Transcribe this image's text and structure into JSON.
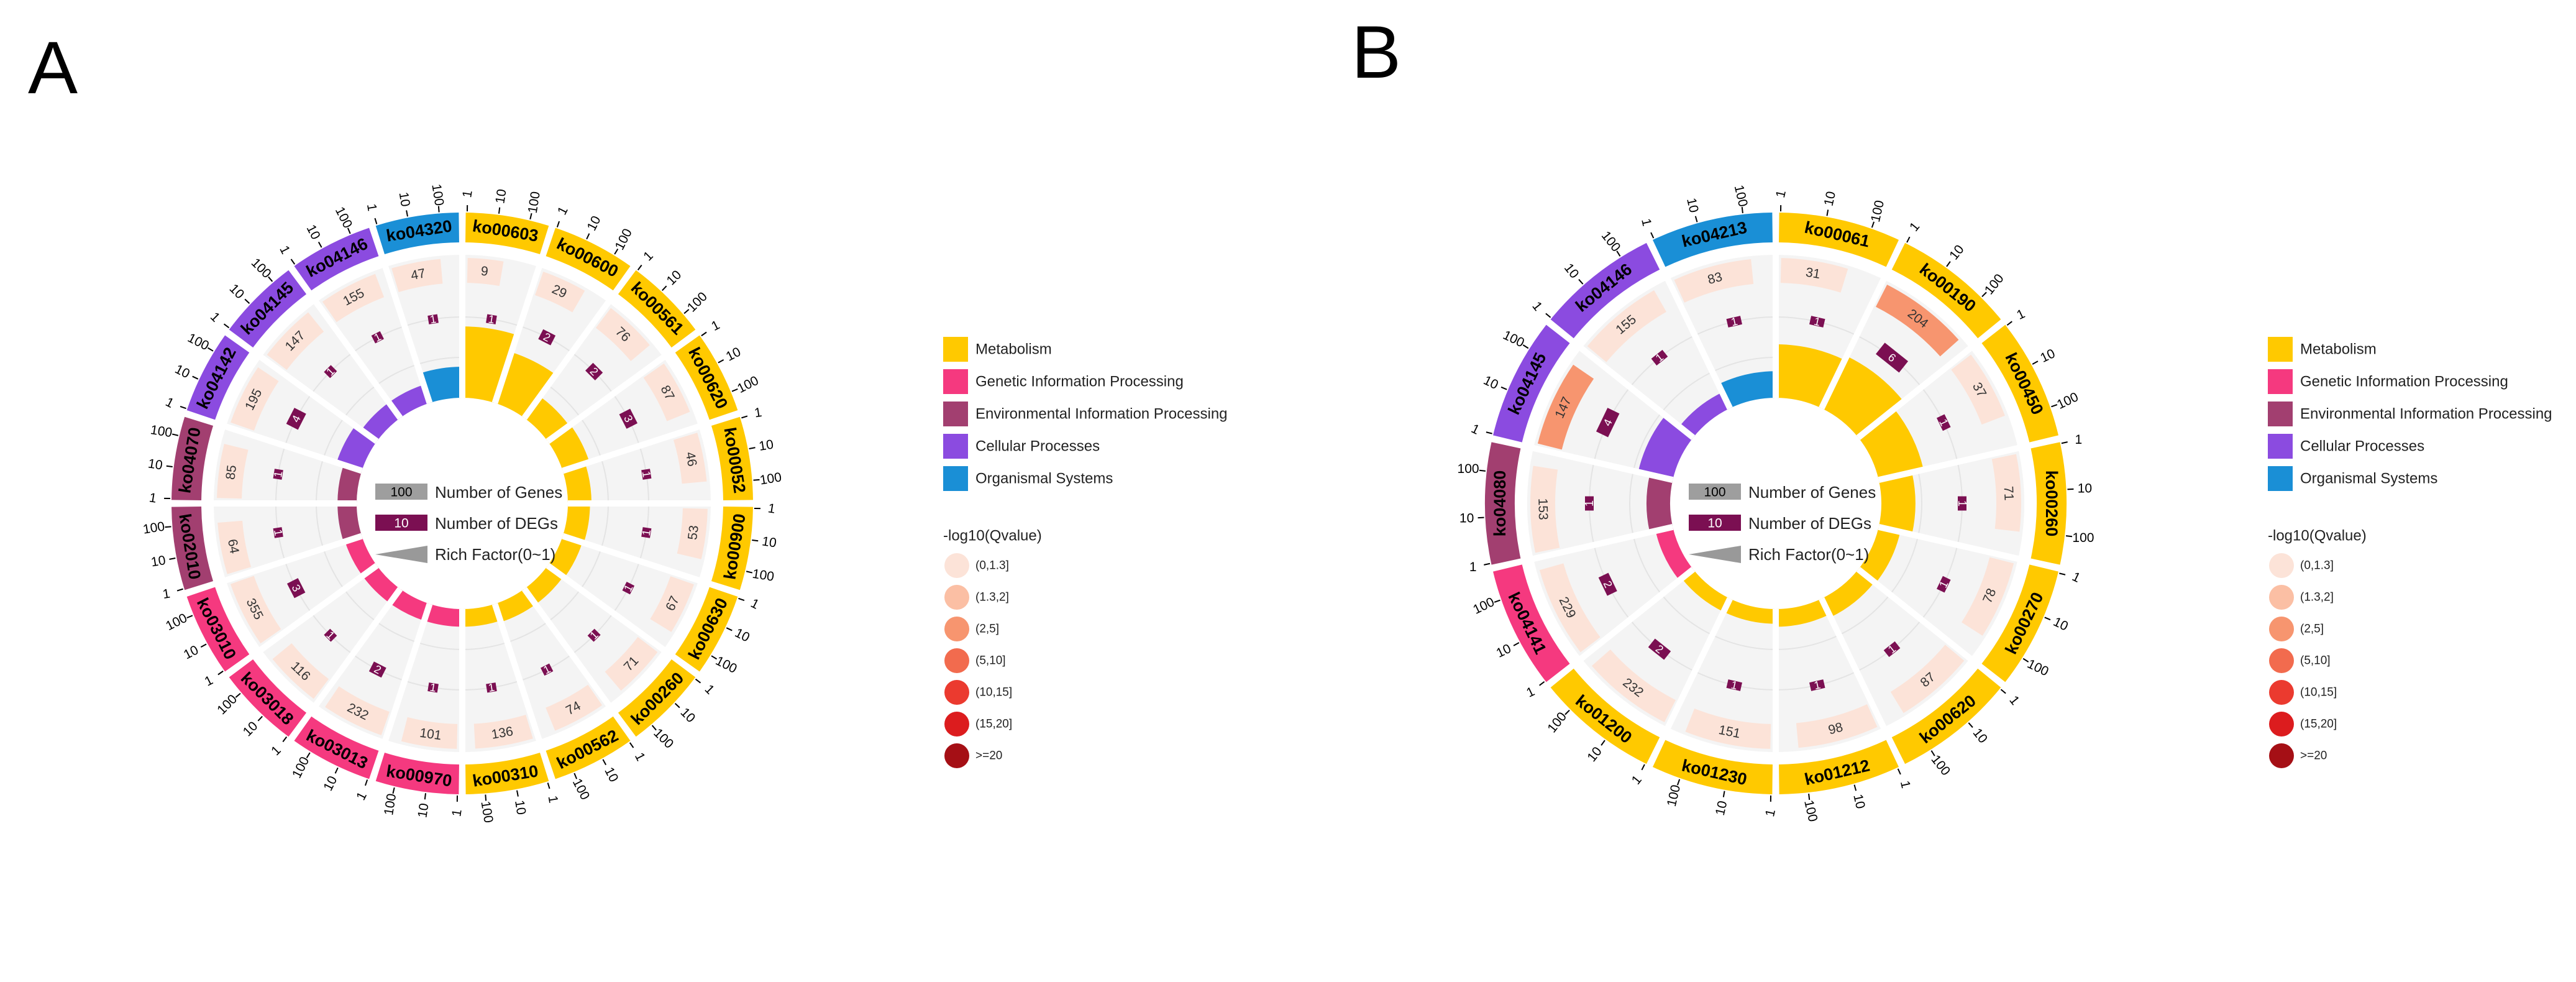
{
  "colors": {
    "Metabolism": "#FFC900",
    "Genetic Information Processing": "#F5397F",
    "Environmental Information Processing": "#A23F70",
    "Cellular Processes": "#8B4BE0",
    "Organismal Systems": "#1A8FD6",
    "grey_sector": "#EFEFEF",
    "grid": "#C8C8C8",
    "deg_box": "#7B0F52",
    "genes_swatch": "#9E9E9E",
    "rich_swatch": "#999999"
  },
  "qvalue_colors": [
    "#FCE3D8",
    "#FBBFA4",
    "#F7956F",
    "#F26B4E",
    "#EB3A2F",
    "#DC1C1E",
    "#A50F15"
  ],
  "legend": {
    "categories": [
      "Metabolism",
      "Genetic Information Processing",
      "Environmental Information Processing",
      "Cellular Processes",
      "Organismal Systems"
    ],
    "qvalue_title": "-log10(Qvalue)",
    "qvalue_levels": [
      "(0,1.3]",
      "(1.3,2]",
      "(2,5]",
      "(5,10]",
      "(10,15]",
      "(15,20]",
      ">=20"
    ]
  },
  "center_legend": {
    "genes_value": "100",
    "genes_label": "Number of Genes",
    "degs_value": "10",
    "degs_label": "Number of DEGs",
    "rich_label": "Rich Factor(0~1)"
  },
  "chart_data": [
    {
      "panel": "A",
      "type": "circular_enrichment",
      "scale_ticks": [
        "1",
        "10",
        "100"
      ],
      "pathways": [
        {
          "id": "ko00603",
          "category": "Metabolism",
          "genes": 9,
          "degs": 1,
          "rich": 0.42,
          "q": 0
        },
        {
          "id": "ko00600",
          "category": "Metabolism",
          "genes": 29,
          "degs": 2,
          "rich": 0.3,
          "q": 0
        },
        {
          "id": "ko00561",
          "category": "Metabolism",
          "genes": 76,
          "degs": 2,
          "rich": 0.12,
          "q": 0
        },
        {
          "id": "ko00620",
          "category": "Metabolism",
          "genes": 87,
          "degs": 3,
          "rich": 0.13,
          "q": 0
        },
        {
          "id": "ko00052",
          "category": "Metabolism",
          "genes": 46,
          "degs": 1,
          "rich": 0.1,
          "q": 0
        },
        {
          "id": "ko00900",
          "category": "Metabolism",
          "genes": 53,
          "degs": 1,
          "rich": 0.09,
          "q": 0
        },
        {
          "id": "ko00630",
          "category": "Metabolism",
          "genes": 67,
          "degs": 1,
          "rich": 0.08,
          "q": 0
        },
        {
          "id": "ko00260",
          "category": "Metabolism",
          "genes": 71,
          "degs": 1,
          "rich": 0.07,
          "q": 0
        },
        {
          "id": "ko00562",
          "category": "Metabolism",
          "genes": 74,
          "degs": 1,
          "rich": 0.07,
          "q": 0
        },
        {
          "id": "ko00310",
          "category": "Metabolism",
          "genes": 136,
          "degs": 1,
          "rich": 0.06,
          "q": 0
        },
        {
          "id": "ko00970",
          "category": "Genetic Information Processing",
          "genes": 101,
          "degs": 1,
          "rich": 0.06,
          "q": 0
        },
        {
          "id": "ko03013",
          "category": "Genetic Information Processing",
          "genes": 232,
          "degs": 2,
          "rich": 0.06,
          "q": 0
        },
        {
          "id": "ko03018",
          "category": "Genetic Information Processing",
          "genes": 116,
          "degs": 1,
          "rich": 0.06,
          "q": 0
        },
        {
          "id": "ko03010",
          "category": "Genetic Information Processing",
          "genes": 355,
          "degs": 3,
          "rich": 0.06,
          "q": 0
        },
        {
          "id": "ko02010",
          "category": "Environmental Information Processing",
          "genes": 64,
          "degs": 1,
          "rich": 0.07,
          "q": 0
        },
        {
          "id": "ko04070",
          "category": "Environmental Information Processing",
          "genes": 85,
          "degs": 1,
          "rich": 0.07,
          "q": 0
        },
        {
          "id": "ko04142",
          "category": "Cellular Processes",
          "genes": 195,
          "degs": 4,
          "rich": 0.12,
          "q": 0
        },
        {
          "id": "ko04145",
          "category": "Cellular Processes",
          "genes": 147,
          "degs": 1,
          "rich": 0.07,
          "q": 0
        },
        {
          "id": "ko04146",
          "category": "Cellular Processes",
          "genes": 155,
          "degs": 1,
          "rich": 0.07,
          "q": 0
        },
        {
          "id": "ko04320",
          "category": "Organismal Systems",
          "genes": 47,
          "degs": 1,
          "rich": 0.15,
          "q": 0
        }
      ]
    },
    {
      "panel": "B",
      "type": "circular_enrichment",
      "scale_ticks": [
        "1",
        "10",
        "100"
      ],
      "pathways": [
        {
          "id": "ko00061",
          "category": "Metabolism",
          "genes": 31,
          "degs": 1,
          "rich": 0.3,
          "q": 0
        },
        {
          "id": "ko00190",
          "category": "Metabolism",
          "genes": 204,
          "degs": 6,
          "rich": 0.33,
          "q": 2
        },
        {
          "id": "ko00450",
          "category": "Metabolism",
          "genes": 37,
          "degs": 1,
          "rich": 0.25,
          "q": 0
        },
        {
          "id": "ko00260",
          "category": "Metabolism",
          "genes": 71,
          "degs": 1,
          "rich": 0.17,
          "q": 0
        },
        {
          "id": "ko00270",
          "category": "Metabolism",
          "genes": 78,
          "degs": 1,
          "rich": 0.09,
          "q": 0
        },
        {
          "id": "ko00620",
          "category": "Metabolism",
          "genes": 87,
          "degs": 1,
          "rich": 0.08,
          "q": 0
        },
        {
          "id": "ko01212",
          "category": "Metabolism",
          "genes": 98,
          "degs": 1,
          "rich": 0.06,
          "q": 0
        },
        {
          "id": "ko01230",
          "category": "Metabolism",
          "genes": 151,
          "degs": 1,
          "rich": 0.04,
          "q": 0
        },
        {
          "id": "ko01200",
          "category": "Metabolism",
          "genes": 232,
          "degs": 2,
          "rich": 0.04,
          "q": 0
        },
        {
          "id": "ko04141",
          "category": "Genetic Information Processing",
          "genes": 229,
          "degs": 2,
          "rich": 0.06,
          "q": 0
        },
        {
          "id": "ko04080",
          "category": "Environmental Information Processing",
          "genes": 153,
          "degs": 1,
          "rich": 0.1,
          "q": 0
        },
        {
          "id": "ko04145",
          "category": "Cellular Processes",
          "genes": 147,
          "degs": 4,
          "rich": 0.18,
          "q": 2
        },
        {
          "id": "ko04146",
          "category": "Cellular Processes",
          "genes": 155,
          "degs": 1,
          "rich": 0.06,
          "q": 0
        },
        {
          "id": "ko04213",
          "category": "Organismal Systems",
          "genes": 83,
          "degs": 1,
          "rich": 0.12,
          "q": 0
        }
      ]
    }
  ]
}
